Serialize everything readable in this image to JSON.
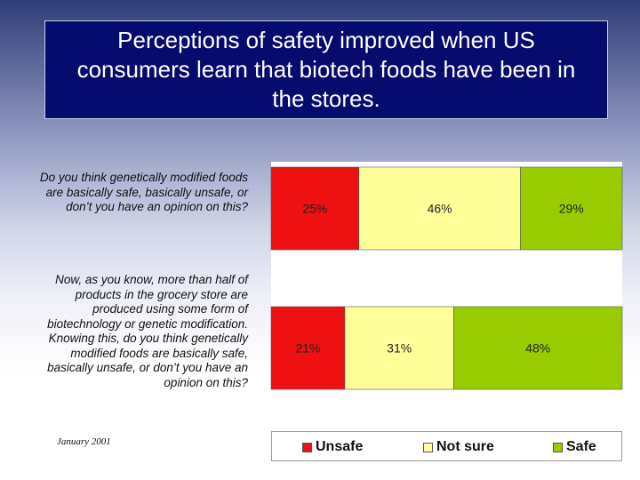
{
  "title": "Perceptions of safety improved when US consumers learn that biotech foods have been in the stores.",
  "footnote": "January 2001",
  "colors": {
    "Unsafe": "#ee1111",
    "Not sure": "#ffff99",
    "Safe": "#99cc00"
  },
  "chart_data": {
    "type": "bar",
    "stacked": true,
    "orientation": "horizontal",
    "categories": [
      "Do you think genetically modified foods are basically safe, basically unsafe, or don’t you have an opinion on this?",
      "Now, as you know, more than half of products in the grocery store are produced using some form of biotechnology or genetic modification.  Knowing this, do you think genetically modified foods are basically safe, basically unsafe, or don’t you have an opinion on this?"
    ],
    "series": [
      {
        "name": "Unsafe",
        "values": [
          25,
          21
        ],
        "labels": [
          "25%",
          "21%"
        ]
      },
      {
        "name": "Not sure",
        "values": [
          46,
          31
        ],
        "labels": [
          "46%",
          "31%"
        ]
      },
      {
        "name": "Safe",
        "values": [
          29,
          48
        ],
        "labels": [
          "29%",
          "48%"
        ]
      }
    ],
    "xlim": [
      0,
      100
    ],
    "legend": "bottom",
    "grid": false
  }
}
